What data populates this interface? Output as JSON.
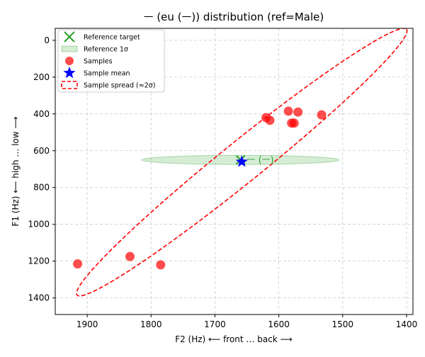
{
  "chart_data": {
    "type": "scatter",
    "title": "ㅡ (eu (ㅡ)) distribution (ref=Male)",
    "xlabel": "F2 (Hz) ⟵ front … back ⟶",
    "ylabel": "F1 (Hz) ⟵ high … low ⟶",
    "xlim": [
      1950,
      1390
    ],
    "ylim": [
      1490,
      -65
    ],
    "x_reversed": true,
    "y_reversed": true,
    "grid": true,
    "x_ticks": [
      "1900",
      "1800",
      "1700",
      "1600",
      "1500",
      "1400"
    ],
    "y_ticks": [
      "0",
      "200",
      "400",
      "600",
      "800",
      "1000",
      "1200",
      "1400"
    ],
    "legend": {
      "placement": "top-left",
      "entries": [
        "Reference target",
        "Reference 1σ",
        "Samples",
        "Sample mean",
        "Sample spread (≈2σ)"
      ]
    },
    "reference_target": {
      "f2": 1660,
      "f1": 650,
      "label": "ㅡ (ㅡ)",
      "color": "#2ca02c"
    },
    "reference_sigma": {
      "center_f2": 1660,
      "center_f1": 650,
      "sd_f2": 155,
      "sd_f1": 25,
      "color": "#2ca02c"
    },
    "samples": {
      "color": "#ff0000",
      "points": [
        {
          "f2": 1915,
          "f1": 1215
        },
        {
          "f2": 1833,
          "f1": 1175
        },
        {
          "f2": 1785,
          "f1": 1220
        },
        {
          "f2": 1620,
          "f1": 420
        },
        {
          "f2": 1614,
          "f1": 435
        },
        {
          "f2": 1585,
          "f1": 385
        },
        {
          "f2": 1580,
          "f1": 450
        },
        {
          "f2": 1576,
          "f1": 450
        },
        {
          "f2": 1570,
          "f1": 390
        },
        {
          "f2": 1533,
          "f1": 405
        }
      ]
    },
    "sample_mean": {
      "f2": 1658,
      "f1": 660,
      "color": "#0000ff"
    },
    "sample_spread": {
      "center_f2": 1658,
      "center_f1": 662,
      "axis1_end_f2": 1400,
      "axis1_end_f1": -60,
      "axis2_end_f2": 1630,
      "axis2_end_f1": 715,
      "color": "#ff0000"
    }
  }
}
